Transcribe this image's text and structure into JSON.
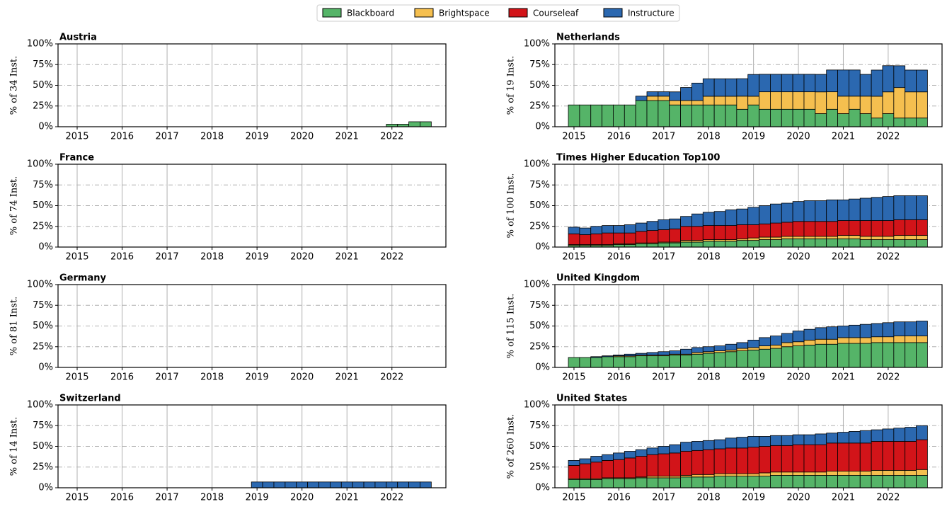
{
  "legend": [
    {
      "name": "Blackboard",
      "color": "#55b468"
    },
    {
      "name": "Brightspace",
      "color": "#f5bf4f"
    },
    {
      "name": "Courseleaf",
      "color": "#d21419"
    },
    {
      "name": "Instructure",
      "color": "#2b68b0"
    }
  ],
  "chart_data": [
    {
      "type": "bar",
      "stacked": true,
      "title": "Austria",
      "ylabel": "% of 34 Inst.",
      "x": [
        2015,
        2015.25,
        2015.5,
        2015.75,
        2016,
        2016.25,
        2016.5,
        2016.75,
        2017,
        2017.25,
        2017.5,
        2017.75,
        2018,
        2018.25,
        2018.5,
        2018.75,
        2019,
        2019.25,
        2019.5,
        2019.75,
        2020,
        2020.25,
        2020.5,
        2020.75,
        2021,
        2021.25,
        2021.5,
        2021.75,
        2022,
        2022.25,
        2022.5,
        2022.75
      ],
      "series": [
        {
          "name": "Blackboard",
          "color": "#55b468",
          "values": [
            0,
            0,
            0,
            0,
            0,
            0,
            0,
            0,
            0,
            0,
            0,
            0,
            0,
            0,
            0,
            0,
            0,
            0,
            0,
            0,
            0,
            0,
            0,
            0,
            0,
            0,
            0,
            0,
            3,
            3,
            6,
            6
          ]
        }
      ],
      "xlim": [
        2014.575,
        2023.2
      ],
      "xticks": [
        2015,
        2016,
        2017,
        2018,
        2019,
        2020,
        2021,
        2022
      ],
      "ylim": [
        0,
        100
      ],
      "yticks": [
        {
          "value": 0,
          "label": "0%"
        },
        {
          "value": 25,
          "label": "25%"
        },
        {
          "value": 50,
          "label": "50%"
        },
        {
          "value": 75,
          "label": "75%"
        },
        {
          "value": 100,
          "label": "100%"
        }
      ],
      "grid": true
    },
    {
      "type": "bar",
      "stacked": true,
      "title": "Netherlands",
      "ylabel": "% of 19 Inst.",
      "x": [
        2015,
        2015.25,
        2015.5,
        2015.75,
        2016,
        2016.25,
        2016.5,
        2016.75,
        2017,
        2017.25,
        2017.5,
        2017.75,
        2018,
        2018.25,
        2018.5,
        2018.75,
        2019,
        2019.25,
        2019.5,
        2019.75,
        2020,
        2020.25,
        2020.5,
        2020.75,
        2021,
        2021.25,
        2021.5,
        2021.75,
        2022,
        2022.25,
        2022.5,
        2022.75
      ],
      "series": [
        {
          "name": "Blackboard",
          "color": "#55b468",
          "values": [
            26.3,
            26.3,
            26.3,
            26.3,
            26.3,
            26.3,
            31.6,
            31.6,
            31.6,
            26.3,
            26.3,
            26.3,
            26.3,
            26.3,
            26.3,
            21.1,
            26.3,
            21.1,
            21.1,
            21.1,
            21.1,
            21.1,
            15.8,
            21.1,
            15.8,
            21.1,
            15.8,
            10.5,
            15.8,
            10.5,
            10.5,
            10.5
          ]
        },
        {
          "name": "Brightspace",
          "color": "#f5bf4f",
          "values": [
            0,
            0,
            0,
            0,
            0,
            0,
            0,
            5.3,
            5.3,
            5.3,
            5.3,
            5.3,
            10.5,
            10.5,
            10.5,
            15.8,
            10.5,
            21.1,
            21.1,
            21.1,
            21.1,
            21.1,
            26.3,
            21.1,
            21.1,
            15.8,
            21.1,
            26.3,
            26.3,
            36.8,
            31.6,
            31.6
          ]
        },
        {
          "name": "Instructure",
          "color": "#2b68b0",
          "values": [
            0,
            0,
            0,
            0,
            0,
            0,
            5.3,
            5.3,
            5.3,
            10.5,
            15.8,
            21.1,
            21.1,
            21.1,
            21.1,
            21.1,
            26.3,
            21.1,
            21.1,
            21.1,
            21.1,
            21.1,
            21.1,
            26.3,
            31.6,
            31.6,
            26.3,
            31.6,
            31.6,
            26.3,
            26.3,
            26.3
          ]
        }
      ],
      "xlim": [
        2014.575,
        2023.2
      ],
      "xticks": [
        2015,
        2016,
        2017,
        2018,
        2019,
        2020,
        2021,
        2022
      ],
      "ylim": [
        0,
        100
      ],
      "yticks": [
        {
          "value": 0,
          "label": "0%"
        },
        {
          "value": 25,
          "label": "25%"
        },
        {
          "value": 50,
          "label": "50%"
        },
        {
          "value": 75,
          "label": "75%"
        },
        {
          "value": 100,
          "label": "100%"
        }
      ],
      "grid": true
    },
    {
      "type": "bar",
      "stacked": true,
      "title": "France",
      "ylabel": "% of 74 Inst.",
      "xlim": [
        2014.575,
        2023.2
      ],
      "xticks": [
        2015,
        2016,
        2017,
        2018,
        2019,
        2020,
        2021,
        2022
      ],
      "ylim": [
        0,
        100
      ],
      "yticks": [
        {
          "value": 0,
          "label": "0%"
        },
        {
          "value": 25,
          "label": "25%"
        },
        {
          "value": 50,
          "label": "50%"
        },
        {
          "value": 75,
          "label": "75%"
        },
        {
          "value": 100,
          "label": "100%"
        }
      ],
      "grid": true
    },
    {
      "type": "bar",
      "stacked": true,
      "title": "Times Higher Education Top100",
      "ylabel": "% of 100 Inst.",
      "x": [
        2015,
        2015.25,
        2015.5,
        2015.75,
        2016,
        2016.25,
        2016.5,
        2016.75,
        2017,
        2017.25,
        2017.5,
        2017.75,
        2018,
        2018.25,
        2018.5,
        2018.75,
        2019,
        2019.25,
        2019.5,
        2019.75,
        2020,
        2020.25,
        2020.5,
        2020.75,
        2021,
        2021.25,
        2021.5,
        2021.75,
        2022,
        2022.25,
        2022.5,
        2022.75
      ],
      "series": [
        {
          "name": "Blackboard",
          "color": "#55b468",
          "values": [
            2,
            2,
            2,
            2,
            3,
            3,
            4,
            4,
            5,
            5,
            6,
            6,
            7,
            7,
            7,
            8,
            8,
            9,
            9,
            10,
            10,
            10,
            10,
            10,
            10,
            10,
            9,
            9,
            9,
            9,
            9,
            9
          ]
        },
        {
          "name": "Brightspace",
          "color": "#f5bf4f",
          "values": [
            1,
            1,
            1,
            1,
            1,
            1,
            1,
            1,
            1,
            1,
            2,
            2,
            2,
            2,
            2,
            2,
            3,
            3,
            3,
            3,
            3,
            3,
            3,
            3,
            4,
            4,
            4,
            4,
            4,
            5,
            5,
            5
          ]
        },
        {
          "name": "Courseleaf",
          "color": "#d21419",
          "values": [
            13,
            12,
            13,
            14,
            13,
            13,
            14,
            15,
            15,
            16,
            17,
            17,
            17,
            17,
            17,
            17,
            16,
            16,
            17,
            17,
            18,
            18,
            18,
            18,
            18,
            18,
            19,
            19,
            19,
            19,
            19,
            19
          ]
        },
        {
          "name": "Instructure",
          "color": "#2b68b0",
          "values": [
            8,
            8,
            9,
            9,
            9,
            10,
            10,
            11,
            12,
            12,
            12,
            15,
            16,
            17,
            19,
            19,
            21,
            22,
            23,
            23,
            24,
            25,
            25,
            26,
            25,
            26,
            27,
            28,
            29,
            29,
            29,
            29
          ]
        }
      ],
      "xlim": [
        2014.575,
        2023.2
      ],
      "xticks": [
        2015,
        2016,
        2017,
        2018,
        2019,
        2020,
        2021,
        2022
      ],
      "ylim": [
        0,
        100
      ],
      "yticks": [
        {
          "value": 0,
          "label": "0%"
        },
        {
          "value": 25,
          "label": "25%"
        },
        {
          "value": 50,
          "label": "50%"
        },
        {
          "value": 75,
          "label": "75%"
        },
        {
          "value": 100,
          "label": "100%"
        }
      ],
      "grid": true
    },
    {
      "type": "bar",
      "stacked": true,
      "title": "Germany",
      "ylabel": "% of 81 Inst.",
      "xlim": [
        2014.575,
        2023.2
      ],
      "xticks": [
        2015,
        2016,
        2017,
        2018,
        2019,
        2020,
        2021,
        2022
      ],
      "ylim": [
        0,
        100
      ],
      "yticks": [
        {
          "value": 0,
          "label": "0%"
        },
        {
          "value": 25,
          "label": "25%"
        },
        {
          "value": 50,
          "label": "50%"
        },
        {
          "value": 75,
          "label": "75%"
        },
        {
          "value": 100,
          "label": "100%"
        }
      ],
      "grid": true
    },
    {
      "type": "bar",
      "stacked": true,
      "title": "United Kingdom",
      "ylabel": "% of 115 Inst.",
      "x": [
        2015,
        2015.25,
        2015.5,
        2015.75,
        2016,
        2016.25,
        2016.5,
        2016.75,
        2017,
        2017.25,
        2017.5,
        2017.75,
        2018,
        2018.25,
        2018.5,
        2018.75,
        2019,
        2019.25,
        2019.5,
        2019.75,
        2020,
        2020.25,
        2020.5,
        2020.75,
        2021,
        2021.25,
        2021.5,
        2021.75,
        2022,
        2022.25,
        2022.5,
        2022.75
      ],
      "series": [
        {
          "name": "Blackboard",
          "color": "#55b468",
          "values": [
            12,
            12,
            12,
            13,
            13,
            13,
            14,
            14,
            14,
            15,
            15,
            16,
            17,
            18,
            19,
            20,
            21,
            22,
            23,
            25,
            26,
            27,
            28,
            28,
            29,
            29,
            29,
            30,
            30,
            30,
            30,
            30
          ]
        },
        {
          "name": "Brightspace",
          "color": "#f5bf4f",
          "values": [
            0,
            0,
            0,
            0,
            1,
            1,
            1,
            1,
            1,
            1,
            1,
            2,
            2,
            2,
            2,
            3,
            3,
            4,
            4,
            5,
            5,
            6,
            6,
            6,
            7,
            7,
            7,
            7,
            7,
            8,
            8,
            8
          ]
        },
        {
          "name": "Instructure",
          "color": "#2b68b0",
          "values": [
            0,
            0,
            1,
            1,
            1,
            2,
            2,
            3,
            4,
            4,
            6,
            6,
            6,
            6,
            7,
            7,
            9,
            10,
            11,
            11,
            13,
            13,
            14,
            15,
            14,
            15,
            16,
            16,
            17,
            17,
            17,
            18
          ]
        }
      ],
      "xlim": [
        2014.575,
        2023.2
      ],
      "xticks": [
        2015,
        2016,
        2017,
        2018,
        2019,
        2020,
        2021,
        2022
      ],
      "ylim": [
        0,
        100
      ],
      "yticks": [
        {
          "value": 0,
          "label": "0%"
        },
        {
          "value": 25,
          "label": "25%"
        },
        {
          "value": 50,
          "label": "50%"
        },
        {
          "value": 75,
          "label": "75%"
        },
        {
          "value": 100,
          "label": "100%"
        }
      ],
      "grid": true
    },
    {
      "type": "bar",
      "stacked": true,
      "title": "Switzerland",
      "ylabel": "% of 14 Inst.",
      "x": [
        2015,
        2015.25,
        2015.5,
        2015.75,
        2016,
        2016.25,
        2016.5,
        2016.75,
        2017,
        2017.25,
        2017.5,
        2017.75,
        2018,
        2018.25,
        2018.5,
        2018.75,
        2019,
        2019.25,
        2019.5,
        2019.75,
        2020,
        2020.25,
        2020.5,
        2020.75,
        2021,
        2021.25,
        2021.5,
        2021.75,
        2022,
        2022.25,
        2022.5,
        2022.75
      ],
      "series": [
        {
          "name": "Instructure",
          "color": "#2b68b0",
          "values": [
            0,
            0,
            0,
            0,
            0,
            0,
            0,
            0,
            0,
            0,
            0,
            0,
            0,
            0,
            0,
            0,
            7,
            7,
            7,
            7,
            7,
            7,
            7,
            7,
            7,
            7,
            7,
            7,
            7,
            7,
            7,
            7
          ]
        }
      ],
      "xlim": [
        2014.575,
        2023.2
      ],
      "xticks": [
        2015,
        2016,
        2017,
        2018,
        2019,
        2020,
        2021,
        2022
      ],
      "ylim": [
        0,
        100
      ],
      "yticks": [
        {
          "value": 0,
          "label": "0%"
        },
        {
          "value": 25,
          "label": "25%"
        },
        {
          "value": 50,
          "label": "50%"
        },
        {
          "value": 75,
          "label": "75%"
        },
        {
          "value": 100,
          "label": "100%"
        }
      ],
      "grid": true
    },
    {
      "type": "bar",
      "stacked": true,
      "title": "United States",
      "ylabel": "% of 260 Inst.",
      "x": [
        2015,
        2015.25,
        2015.5,
        2015.75,
        2016,
        2016.25,
        2016.5,
        2016.75,
        2017,
        2017.25,
        2017.5,
        2017.75,
        2018,
        2018.25,
        2018.5,
        2018.75,
        2019,
        2019.25,
        2019.5,
        2019.75,
        2020,
        2020.25,
        2020.5,
        2020.75,
        2021,
        2021.25,
        2021.5,
        2021.75,
        2022,
        2022.25,
        2022.5,
        2022.75
      ],
      "series": [
        {
          "name": "Blackboard",
          "color": "#55b468",
          "values": [
            10,
            10,
            10,
            11,
            11,
            11,
            12,
            12,
            12,
            12,
            13,
            13,
            13,
            14,
            14,
            14,
            14,
            14,
            15,
            15,
            15,
            15,
            15,
            15,
            15,
            15,
            15,
            15,
            15,
            15,
            15,
            15
          ]
        },
        {
          "name": "Brightspace",
          "color": "#f5bf4f",
          "values": [
            1,
            1,
            1,
            1,
            1,
            1,
            1,
            2,
            2,
            2,
            2,
            3,
            3,
            3,
            3,
            3,
            3,
            4,
            4,
            4,
            4,
            4,
            4,
            5,
            5,
            5,
            5,
            6,
            6,
            6,
            6,
            7
          ]
        },
        {
          "name": "Courseleaf",
          "color": "#d21419",
          "values": [
            16,
            18,
            20,
            21,
            22,
            24,
            25,
            26,
            27,
            28,
            29,
            29,
            30,
            30,
            31,
            31,
            32,
            32,
            32,
            32,
            33,
            33,
            33,
            34,
            34,
            34,
            34,
            35,
            35,
            35,
            35,
            36
          ]
        },
        {
          "name": "Instructure",
          "color": "#2b68b0",
          "values": [
            6,
            6,
            7,
            7,
            8,
            8,
            8,
            8,
            9,
            10,
            11,
            11,
            11,
            11,
            12,
            13,
            13,
            12,
            12,
            12,
            12,
            12,
            13,
            12,
            13,
            14,
            15,
            14,
            15,
            16,
            17,
            17
          ]
        }
      ],
      "xlim": [
        2014.575,
        2023.2
      ],
      "xticks": [
        2015,
        2016,
        2017,
        2018,
        2019,
        2020,
        2021,
        2022
      ],
      "ylim": [
        0,
        100
      ],
      "yticks": [
        {
          "value": 0,
          "label": "0%"
        },
        {
          "value": 25,
          "label": "25%"
        },
        {
          "value": 50,
          "label": "50%"
        },
        {
          "value": 75,
          "label": "75%"
        },
        {
          "value": 100,
          "label": "100%"
        }
      ],
      "grid": true
    }
  ]
}
